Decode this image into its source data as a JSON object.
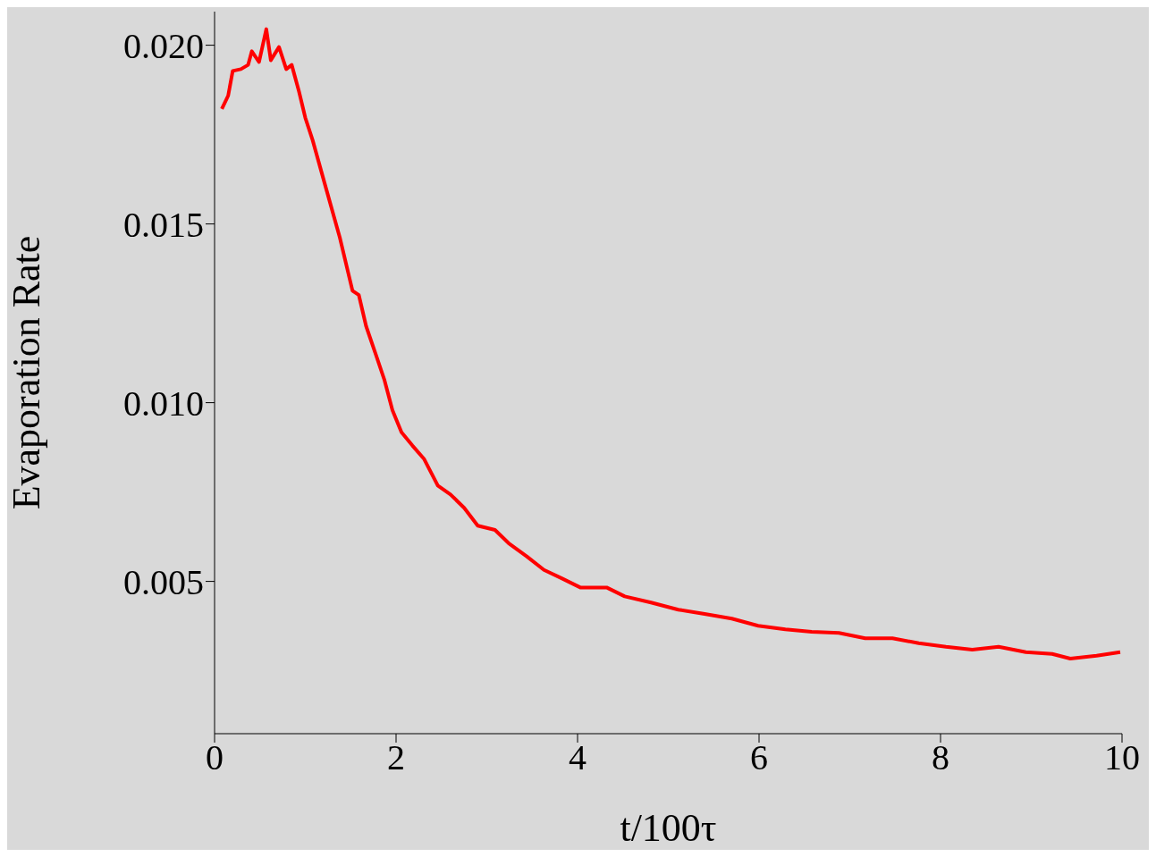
{
  "chart_data": {
    "type": "line",
    "xlabel": "t/100τ",
    "ylabel": "Evaporation Rate",
    "x": [
      0.08,
      0.15,
      0.2,
      0.29,
      0.37,
      0.41,
      0.49,
      0.57,
      0.62,
      0.71,
      0.79,
      0.85,
      0.93,
      1.0,
      1.08,
      1.23,
      1.38,
      1.52,
      1.59,
      1.67,
      1.77,
      1.87,
      1.96,
      2.06,
      2.18,
      2.31,
      2.46,
      2.6,
      2.75,
      2.9,
      3.09,
      3.24,
      3.44,
      3.63,
      3.83,
      4.03,
      4.32,
      4.52,
      4.81,
      5.11,
      5.4,
      5.7,
      5.99,
      6.29,
      6.58,
      6.88,
      7.17,
      7.47,
      7.76,
      8.06,
      8.35,
      8.64,
      8.94,
      9.23,
      9.43,
      9.72,
      9.98
    ],
    "series": [
      {
        "color": "#ff0000",
        "values": [
          0.01822,
          0.01859,
          0.01928,
          0.01933,
          0.01945,
          0.01983,
          0.01953,
          0.02045,
          0.01958,
          0.01995,
          0.01933,
          0.01945,
          0.01871,
          0.01797,
          0.01735,
          0.01598,
          0.01462,
          0.01313,
          0.01301,
          0.01214,
          0.0114,
          0.01065,
          0.00979,
          0.00917,
          0.0088,
          0.00842,
          0.00768,
          0.00743,
          0.00706,
          0.00656,
          0.00644,
          0.00607,
          0.0057,
          0.00532,
          0.00508,
          0.00483,
          0.00483,
          0.00458,
          0.00441,
          0.00421,
          0.00409,
          0.00396,
          0.00376,
          0.00366,
          0.00359,
          0.00356,
          0.00341,
          0.00341,
          0.00327,
          0.00317,
          0.00309,
          0.00317,
          0.00302,
          0.00297,
          0.00284,
          0.00292,
          0.00302
        ]
      }
    ],
    "xlim": [
      0,
      10
    ],
    "xticks": [
      0,
      2,
      4,
      6,
      8,
      10
    ],
    "ylim": [
      0.00074,
      0.02094
    ],
    "yticks": [
      {
        "value": 0.005,
        "label": "0.005"
      },
      {
        "value": 0.01,
        "label": "0.010"
      },
      {
        "value": 0.015,
        "label": "0.015"
      },
      {
        "value": 0.02,
        "label": "0.020"
      }
    ],
    "grid": false,
    "legend": false,
    "marker": "none",
    "line_style": "solid"
  }
}
